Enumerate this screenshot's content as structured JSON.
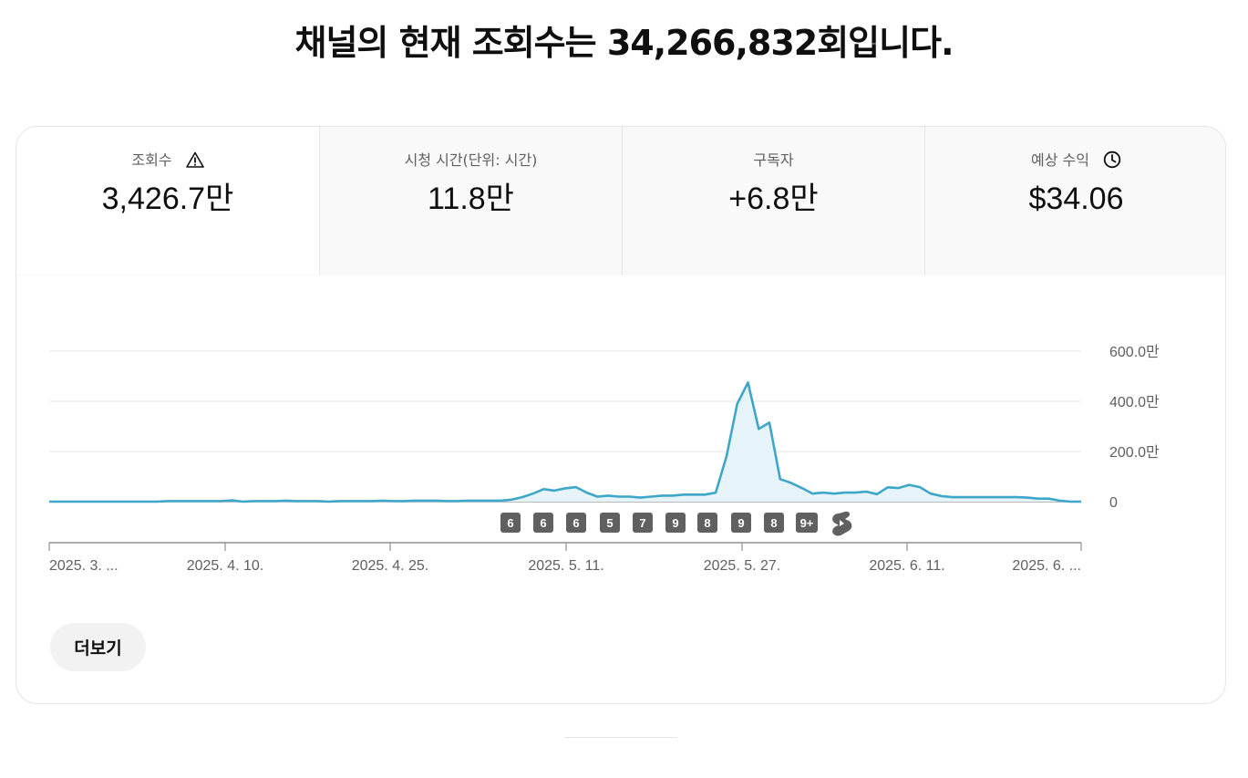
{
  "headline": "채널의 현재 조회수는 34,266,832회입니다.",
  "metrics": [
    {
      "label": "조회수",
      "value": "3,426.7만",
      "icon": "warning-icon",
      "selected": true
    },
    {
      "label": "시청 시간(단위: 시간)",
      "value": "11.8만",
      "selected": false
    },
    {
      "label": "구독자",
      "value": "+6.8만",
      "selected": false
    },
    {
      "label": "예상 수익",
      "value": "$34.06",
      "icon": "clock-icon",
      "selected": false
    }
  ],
  "chart_data": {
    "type": "area",
    "y_tick_labels": [
      "0",
      "200.0만",
      "400.0만",
      "600.0만"
    ],
    "y_ticks": [
      0,
      200,
      400,
      600
    ],
    "y_unit": "만",
    "ylim": [
      0,
      600
    ],
    "x_tick_labels": [
      "2025. 3. ...",
      "2025. 4. 10.",
      "2025. 4. 25.",
      "2025. 5. 11.",
      "2025. 5. 27.",
      "2025. 6. 11.",
      "2025. 6. ..."
    ],
    "grid": true,
    "color": "#3ea6c8",
    "fill_color": "#e6f3f8",
    "values": [
      0,
      0,
      0,
      0,
      0,
      0,
      0,
      0,
      0,
      0,
      0,
      2,
      2,
      2,
      2,
      2,
      2,
      5,
      0,
      2,
      2,
      2,
      4,
      2,
      2,
      2,
      0,
      2,
      2,
      2,
      2,
      4,
      2,
      2,
      4,
      4,
      4,
      2,
      2,
      4,
      4,
      4,
      4,
      8,
      18,
      32,
      50,
      44,
      53,
      58,
      36,
      20,
      24,
      20,
      20,
      16,
      20,
      24,
      24,
      28,
      28,
      28,
      36,
      180,
      390,
      475,
      290,
      315,
      90,
      75,
      55,
      32,
      36,
      32,
      36,
      36,
      40,
      30,
      57,
      54,
      67,
      58,
      32,
      22,
      18,
      18,
      18,
      18,
      18,
      18,
      18,
      16,
      12,
      12,
      4,
      0,
      0
    ],
    "upload_badges": [
      "6",
      "6",
      "6",
      "5",
      "7",
      "9",
      "8",
      "9",
      "8",
      "9+"
    ],
    "shorts_icon": "shorts-icon"
  },
  "more_button": "더보기"
}
